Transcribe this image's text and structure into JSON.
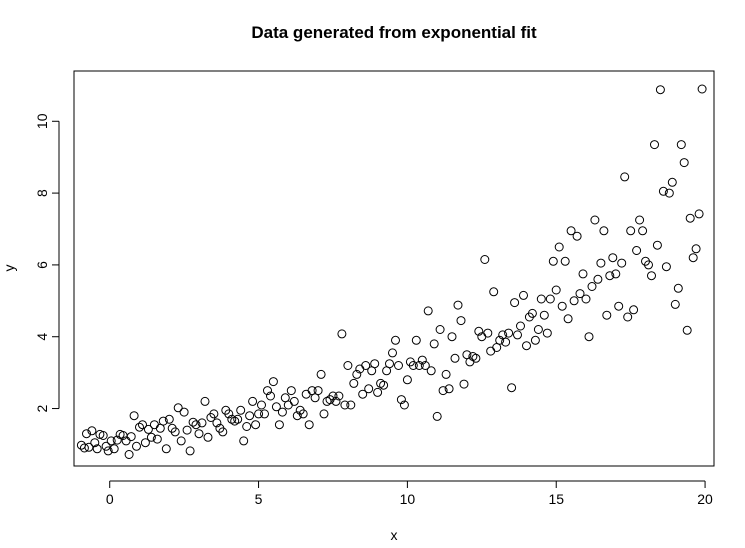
{
  "chart_data": {
    "type": "scatter",
    "title": "Data generated from exponential fit",
    "xlabel": "x",
    "ylabel": "y",
    "xlim": [
      -1.2,
      20.3
    ],
    "ylim": [
      0.4,
      11.4
    ],
    "xticks": [
      0,
      5,
      10,
      15,
      20
    ],
    "yticks": [
      2,
      4,
      6,
      8,
      10
    ],
    "grid": false,
    "marker": "open-circle",
    "points": [
      [
        -0.95,
        0.98
      ],
      [
        -0.85,
        0.9
      ],
      [
        -0.78,
        1.3
      ],
      [
        -0.7,
        0.92
      ],
      [
        -0.6,
        1.38
      ],
      [
        -0.5,
        1.05
      ],
      [
        -0.42,
        0.88
      ],
      [
        -0.33,
        1.28
      ],
      [
        -0.22,
        1.25
      ],
      [
        -0.12,
        0.95
      ],
      [
        -0.05,
        0.82
      ],
      [
        0.05,
        1.1
      ],
      [
        0.15,
        0.88
      ],
      [
        0.25,
        1.12
      ],
      [
        0.35,
        1.28
      ],
      [
        0.45,
        1.25
      ],
      [
        0.55,
        1.1
      ],
      [
        0.65,
        0.72
      ],
      [
        0.72,
        1.22
      ],
      [
        0.82,
        1.8
      ],
      [
        0.9,
        0.95
      ],
      [
        1.0,
        1.48
      ],
      [
        1.1,
        1.55
      ],
      [
        1.2,
        1.05
      ],
      [
        1.3,
        1.42
      ],
      [
        1.4,
        1.2
      ],
      [
        1.5,
        1.55
      ],
      [
        1.6,
        1.15
      ],
      [
        1.7,
        1.45
      ],
      [
        1.8,
        1.65
      ],
      [
        1.9,
        0.88
      ],
      [
        2.0,
        1.7
      ],
      [
        2.1,
        1.45
      ],
      [
        2.2,
        1.35
      ],
      [
        2.3,
        2.02
      ],
      [
        2.4,
        1.1
      ],
      [
        2.5,
        1.9
      ],
      [
        2.6,
        1.4
      ],
      [
        2.7,
        0.82
      ],
      [
        2.8,
        1.62
      ],
      [
        2.9,
        1.55
      ],
      [
        3.0,
        1.3
      ],
      [
        3.1,
        1.6
      ],
      [
        3.2,
        2.2
      ],
      [
        3.3,
        1.2
      ],
      [
        3.4,
        1.75
      ],
      [
        3.5,
        1.85
      ],
      [
        3.6,
        1.6
      ],
      [
        3.7,
        1.45
      ],
      [
        3.8,
        1.35
      ],
      [
        3.9,
        1.95
      ],
      [
        4.0,
        1.85
      ],
      [
        4.1,
        1.7
      ],
      [
        4.2,
        1.65
      ],
      [
        4.3,
        1.7
      ],
      [
        4.4,
        1.95
      ],
      [
        4.5,
        1.1
      ],
      [
        4.6,
        1.5
      ],
      [
        4.7,
        1.8
      ],
      [
        4.8,
        2.2
      ],
      [
        4.9,
        1.55
      ],
      [
        5.0,
        1.85
      ],
      [
        5.1,
        2.1
      ],
      [
        5.2,
        1.85
      ],
      [
        5.3,
        2.5
      ],
      [
        5.4,
        2.35
      ],
      [
        5.5,
        2.75
      ],
      [
        5.6,
        2.05
      ],
      [
        5.7,
        1.55
      ],
      [
        5.8,
        1.9
      ],
      [
        5.9,
        2.3
      ],
      [
        6.0,
        2.1
      ],
      [
        6.1,
        2.5
      ],
      [
        6.2,
        2.2
      ],
      [
        6.3,
        1.8
      ],
      [
        6.4,
        1.95
      ],
      [
        6.5,
        1.85
      ],
      [
        6.6,
        2.4
      ],
      [
        6.7,
        1.55
      ],
      [
        6.8,
        2.5
      ],
      [
        6.9,
        2.3
      ],
      [
        7.0,
        2.5
      ],
      [
        7.1,
        2.95
      ],
      [
        7.2,
        1.85
      ],
      [
        7.3,
        2.2
      ],
      [
        7.4,
        2.25
      ],
      [
        7.5,
        2.35
      ],
      [
        7.6,
        2.2
      ],
      [
        7.7,
        2.35
      ],
      [
        7.8,
        4.08
      ],
      [
        7.9,
        2.1
      ],
      [
        8.0,
        3.2
      ],
      [
        8.1,
        2.1
      ],
      [
        8.2,
        2.7
      ],
      [
        8.3,
        2.95
      ],
      [
        8.4,
        3.1
      ],
      [
        8.5,
        2.4
      ],
      [
        8.6,
        3.2
      ],
      [
        8.7,
        2.55
      ],
      [
        8.8,
        3.05
      ],
      [
        8.9,
        3.25
      ],
      [
        9.0,
        2.45
      ],
      [
        9.1,
        2.7
      ],
      [
        9.2,
        2.65
      ],
      [
        9.3,
        3.05
      ],
      [
        9.4,
        3.25
      ],
      [
        9.5,
        3.55
      ],
      [
        9.6,
        3.9
      ],
      [
        9.7,
        3.2
      ],
      [
        9.8,
        2.25
      ],
      [
        9.9,
        2.1
      ],
      [
        10.0,
        2.8
      ],
      [
        10.1,
        3.3
      ],
      [
        10.2,
        3.2
      ],
      [
        10.3,
        3.9
      ],
      [
        10.4,
        3.2
      ],
      [
        10.5,
        3.35
      ],
      [
        10.6,
        3.2
      ],
      [
        10.7,
        4.72
      ],
      [
        10.8,
        3.05
      ],
      [
        10.9,
        3.8
      ],
      [
        11.0,
        1.78
      ],
      [
        11.1,
        4.2
      ],
      [
        11.2,
        2.5
      ],
      [
        11.3,
        2.95
      ],
      [
        11.4,
        2.55
      ],
      [
        11.5,
        4.0
      ],
      [
        11.6,
        3.4
      ],
      [
        11.7,
        4.88
      ],
      [
        11.8,
        4.45
      ],
      [
        11.9,
        2.68
      ],
      [
        12.0,
        3.5
      ],
      [
        12.1,
        3.3
      ],
      [
        12.2,
        3.45
      ],
      [
        12.3,
        3.4
      ],
      [
        12.4,
        4.15
      ],
      [
        12.5,
        4.0
      ],
      [
        12.6,
        6.15
      ],
      [
        12.7,
        4.1
      ],
      [
        12.8,
        3.6
      ],
      [
        12.9,
        5.25
      ],
      [
        13.0,
        3.7
      ],
      [
        13.1,
        3.9
      ],
      [
        13.2,
        4.05
      ],
      [
        13.3,
        3.85
      ],
      [
        13.4,
        4.1
      ],
      [
        13.5,
        2.58
      ],
      [
        13.6,
        4.95
      ],
      [
        13.7,
        4.05
      ],
      [
        13.8,
        4.3
      ],
      [
        13.9,
        5.15
      ],
      [
        14.0,
        3.75
      ],
      [
        14.1,
        4.55
      ],
      [
        14.2,
        4.65
      ],
      [
        14.3,
        3.9
      ],
      [
        14.4,
        4.2
      ],
      [
        14.5,
        5.05
      ],
      [
        14.6,
        4.6
      ],
      [
        14.7,
        4.1
      ],
      [
        14.8,
        5.05
      ],
      [
        14.9,
        6.1
      ],
      [
        15.0,
        5.3
      ],
      [
        15.1,
        6.5
      ],
      [
        15.2,
        4.85
      ],
      [
        15.3,
        6.1
      ],
      [
        15.4,
        4.5
      ],
      [
        15.5,
        6.95
      ],
      [
        15.6,
        5.0
      ],
      [
        15.7,
        6.8
      ],
      [
        15.8,
        5.2
      ],
      [
        15.9,
        5.75
      ],
      [
        16.0,
        5.05
      ],
      [
        16.1,
        4.0
      ],
      [
        16.2,
        5.4
      ],
      [
        16.3,
        7.25
      ],
      [
        16.4,
        5.6
      ],
      [
        16.5,
        6.05
      ],
      [
        16.6,
        6.95
      ],
      [
        16.7,
        4.6
      ],
      [
        16.8,
        5.7
      ],
      [
        16.9,
        6.2
      ],
      [
        17.0,
        5.75
      ],
      [
        17.1,
        4.85
      ],
      [
        17.2,
        6.05
      ],
      [
        17.3,
        8.45
      ],
      [
        17.4,
        4.55
      ],
      [
        17.5,
        6.95
      ],
      [
        17.6,
        4.75
      ],
      [
        17.7,
        6.4
      ],
      [
        17.8,
        7.25
      ],
      [
        17.9,
        6.95
      ],
      [
        18.0,
        6.1
      ],
      [
        18.1,
        6.0
      ],
      [
        18.2,
        5.7
      ],
      [
        18.3,
        9.35
      ],
      [
        18.4,
        6.55
      ],
      [
        18.5,
        10.88
      ],
      [
        18.6,
        8.05
      ],
      [
        18.7,
        5.95
      ],
      [
        18.8,
        8.0
      ],
      [
        18.9,
        8.3
      ],
      [
        19.0,
        4.9
      ],
      [
        19.1,
        5.35
      ],
      [
        19.2,
        9.35
      ],
      [
        19.3,
        8.85
      ],
      [
        19.4,
        4.18
      ],
      [
        19.5,
        7.3
      ],
      [
        19.6,
        6.2
      ],
      [
        19.7,
        6.45
      ],
      [
        19.8,
        7.42
      ],
      [
        19.9,
        10.9
      ]
    ]
  }
}
